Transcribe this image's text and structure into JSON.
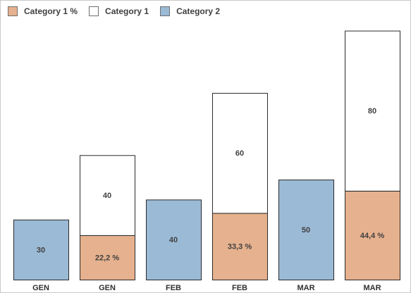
{
  "chart_data": {
    "type": "bar",
    "stacked": true,
    "legend_position": "top-left",
    "grid": false,
    "ylim": [
      0,
      126
    ],
    "categories": [
      "GEN",
      "GEN",
      "FEB",
      "FEB",
      "MAR",
      "MAR"
    ],
    "legend": [
      {
        "name": "Category 1 %",
        "color": "#e6b18e"
      },
      {
        "name": "Category 1",
        "color": "#ffffff"
      },
      {
        "name": "Category 2",
        "color": "#9bbad6"
      }
    ],
    "bars": [
      {
        "category": "GEN",
        "segments": [
          {
            "series": "Category 2",
            "value": 30,
            "label": "30"
          }
        ]
      },
      {
        "category": "GEN",
        "segments": [
          {
            "series": "Category 1 %",
            "value": 22.2,
            "label": "22,2 %"
          },
          {
            "series": "Category 1",
            "value": 40,
            "label": "40"
          }
        ]
      },
      {
        "category": "FEB",
        "segments": [
          {
            "series": "Category 2",
            "value": 40,
            "label": "40"
          }
        ]
      },
      {
        "category": "FEB",
        "segments": [
          {
            "series": "Category 1 %",
            "value": 33.3,
            "label": "33,3 %"
          },
          {
            "series": "Category 1",
            "value": 60,
            "label": "60"
          }
        ]
      },
      {
        "category": "MAR",
        "segments": [
          {
            "series": "Category 2",
            "value": 50,
            "label": "50"
          }
        ]
      },
      {
        "category": "MAR",
        "segments": [
          {
            "series": "Category 1 %",
            "value": 44.4,
            "label": "44,4 %"
          },
          {
            "series": "Category 1",
            "value": 80,
            "label": "80"
          }
        ]
      }
    ]
  }
}
